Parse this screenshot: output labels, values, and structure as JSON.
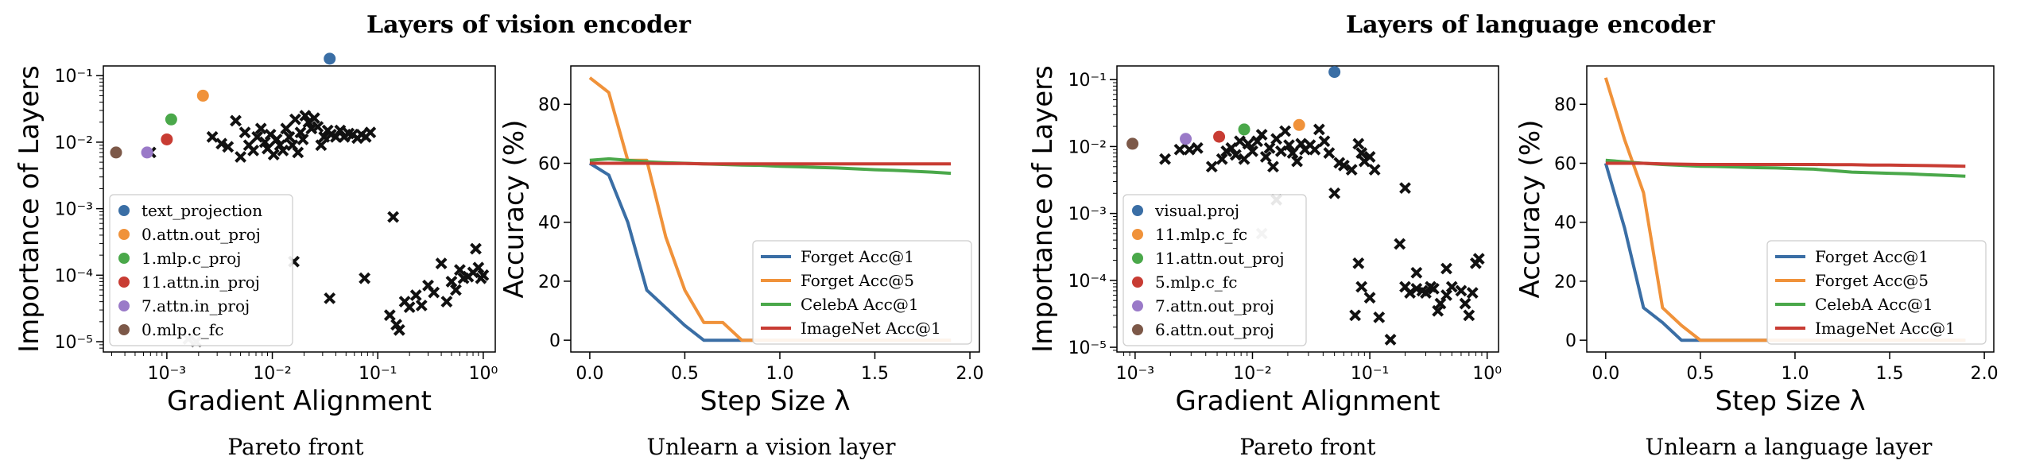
{
  "section_titles": [
    "Layers of vision encoder",
    "Layers of language encoder"
  ],
  "chart_data": [
    {
      "type": "scatter",
      "id": "p0",
      "caption": "Pareto front",
      "xlabel": "Gradient Alignment",
      "ylabel": "Importance of Layers",
      "xscale": "log",
      "yscale": "log",
      "xlim": [
        0.00025,
        1.3
      ],
      "ylim": [
        7e-06,
        0.14
      ],
      "xticks": [
        0.001,
        0.01,
        0.1,
        1
      ],
      "xtick_labels": [
        "10⁻³",
        "10⁻²",
        "10⁻¹",
        "10⁰"
      ],
      "yticks": [
        1e-05,
        0.0001,
        0.001,
        0.01,
        0.1
      ],
      "ytick_labels": [
        "10⁻⁵",
        "10⁻⁴",
        "10⁻³",
        "10⁻²",
        "10⁻¹"
      ],
      "legend_position": "lower-left",
      "highlighted": [
        {
          "label": "text_projection",
          "x": 0.035,
          "y": 0.18,
          "color": "#3a6ea5"
        },
        {
          "label": "0.attn.out_proj",
          "x": 0.0022,
          "y": 0.05,
          "color": "#f0923a"
        },
        {
          "label": "1.mlp.c_proj",
          "x": 0.0011,
          "y": 0.022,
          "color": "#4aa84a"
        },
        {
          "label": "11.attn.in_proj",
          "x": 0.001,
          "y": 0.011,
          "color": "#c83c33"
        },
        {
          "label": "7.attn.in_proj",
          "x": 0.00065,
          "y": 0.007,
          "color": "#9a7ac8"
        },
        {
          "label": "0.mlp.c_fc",
          "x": 0.00033,
          "y": 0.007,
          "color": "#7c5848"
        }
      ],
      "others": [
        [
          0.0007,
          0.007
        ],
        [
          0.0027,
          0.012
        ],
        [
          0.0033,
          0.0095
        ],
        [
          0.0038,
          0.0085
        ],
        [
          0.0045,
          0.021
        ],
        [
          0.005,
          0.006
        ],
        [
          0.0055,
          0.014
        ],
        [
          0.006,
          0.009
        ],
        [
          0.0066,
          0.0075
        ],
        [
          0.0072,
          0.012
        ],
        [
          0.0078,
          0.016
        ],
        [
          0.0085,
          0.01
        ],
        [
          0.009,
          0.008
        ],
        [
          0.0096,
          0.013
        ],
        [
          0.0103,
          0.0065
        ],
        [
          0.011,
          0.011
        ],
        [
          0.0118,
          0.009
        ],
        [
          0.0126,
          0.0075
        ],
        [
          0.0135,
          0.016
        ],
        [
          0.0145,
          0.012
        ],
        [
          0.0155,
          0.009
        ],
        [
          0.0165,
          0.022
        ],
        [
          0.0175,
          0.007
        ],
        [
          0.0185,
          0.014
        ],
        [
          0.0195,
          0.011
        ],
        [
          0.0205,
          0.025
        ],
        [
          0.022,
          0.02
        ],
        [
          0.0235,
          0.016
        ],
        [
          0.025,
          0.023
        ],
        [
          0.027,
          0.017
        ],
        [
          0.029,
          0.009
        ],
        [
          0.031,
          0.012
        ],
        [
          0.0335,
          0.015
        ],
        [
          0.036,
          0.013
        ],
        [
          0.04,
          0.012
        ],
        [
          0.044,
          0.015
        ],
        [
          0.048,
          0.012
        ],
        [
          0.053,
          0.0135
        ],
        [
          0.058,
          0.013
        ],
        [
          0.064,
          0.0115
        ],
        [
          0.07,
          0.013
        ],
        [
          0.077,
          0.012
        ],
        [
          0.085,
          0.014
        ],
        [
          0.035,
          4.5e-05
        ],
        [
          0.016,
          0.00016
        ],
        [
          0.075,
          9e-05
        ],
        [
          0.14,
          0.00075
        ],
        [
          0.13,
          2.5e-05
        ],
        [
          0.15,
          1.8e-05
        ],
        [
          0.16,
          1.5e-05
        ],
        [
          0.18,
          4e-05
        ],
        [
          0.2,
          3.3e-05
        ],
        [
          0.23,
          5e-05
        ],
        [
          0.26,
          3.5e-05
        ],
        [
          0.3,
          7e-05
        ],
        [
          0.34,
          5.5e-05
        ],
        [
          0.4,
          0.00015
        ],
        [
          0.45,
          4e-05
        ],
        [
          0.5,
          8e-05
        ],
        [
          0.55,
          6e-05
        ],
        [
          0.6,
          0.00012
        ],
        [
          0.65,
          9e-05
        ],
        [
          0.72,
          9.5e-05
        ],
        [
          0.8,
          0.00011
        ],
        [
          0.85,
          0.00025
        ],
        [
          0.9,
          0.00013
        ],
        [
          0.95,
          9e-05
        ],
        [
          1.0,
          0.0001
        ]
      ],
      "faded": [
        [
          0.0016,
          1.1e-05
        ],
        [
          0.0019,
          1e-05
        ]
      ]
    },
    {
      "type": "line",
      "id": "p1",
      "caption": "Unlearn a vision layer",
      "xlabel": "Step Size λ",
      "ylabel": "Accuracy (%)",
      "xlim": [
        -0.1,
        2.05
      ],
      "ylim": [
        -4,
        93
      ],
      "xticks": [
        0,
        0.5,
        1,
        1.5,
        2
      ],
      "xtick_labels": [
        "0.0",
        "0.5",
        "1.0",
        "1.5",
        "2.0"
      ],
      "yticks": [
        0,
        20,
        40,
        60,
        80
      ],
      "ytick_labels": [
        "0",
        "20",
        "40",
        "60",
        "80"
      ],
      "legend_position": "lower-right",
      "series": [
        {
          "name": "Forget Acc@1",
          "color": "#3a6ea5",
          "x": [
            0,
            0.1,
            0.2,
            0.3,
            0.4,
            0.5,
            0.6,
            0.7,
            0.8,
            0.9,
            1.0,
            1.1,
            1.2,
            1.3,
            1.4,
            1.5,
            1.6,
            1.7,
            1.8,
            1.9
          ],
          "y": [
            60,
            56,
            40,
            17,
            11,
            5,
            0,
            0,
            0,
            0,
            0,
            0,
            0,
            0,
            0,
            0,
            0,
            0,
            0,
            0
          ]
        },
        {
          "name": "Forget Acc@5",
          "color": "#f0923a",
          "x": [
            0,
            0.1,
            0.2,
            0.3,
            0.4,
            0.5,
            0.6,
            0.7,
            0.8,
            0.9,
            1.0,
            1.1,
            1.2,
            1.3,
            1.4,
            1.5,
            1.6,
            1.7,
            1.8,
            1.9
          ],
          "y": [
            89,
            84,
            61,
            61,
            35,
            17,
            6,
            6,
            0,
            0,
            0,
            0,
            0,
            0,
            0,
            0,
            0,
            0,
            0,
            0
          ]
        },
        {
          "name": "CelebA Acc@1",
          "color": "#4aa84a",
          "x": [
            0,
            0.1,
            0.2,
            0.3,
            0.4,
            0.5,
            0.6,
            0.7,
            0.8,
            0.9,
            1.0,
            1.1,
            1.2,
            1.3,
            1.4,
            1.5,
            1.6,
            1.7,
            1.8,
            1.9
          ],
          "y": [
            61,
            61.5,
            61,
            60.5,
            60.2,
            60,
            59.8,
            59.6,
            59.4,
            59.3,
            59,
            58.8,
            58.6,
            58.4,
            58.1,
            57.8,
            57.6,
            57.3,
            57,
            56.6
          ]
        },
        {
          "name": "ImageNet Acc@1",
          "color": "#c83c33",
          "x": [
            0,
            0.1,
            0.2,
            0.3,
            0.4,
            0.5,
            0.6,
            0.7,
            0.8,
            0.9,
            1.0,
            1.1,
            1.2,
            1.3,
            1.4,
            1.5,
            1.6,
            1.7,
            1.8,
            1.9
          ],
          "y": [
            60,
            60,
            60,
            60,
            59.9,
            59.9,
            59.8,
            59.8,
            59.8,
            59.8,
            59.8,
            59.8,
            59.8,
            59.8,
            59.8,
            59.8,
            59.8,
            59.8,
            59.8,
            59.8
          ]
        }
      ]
    },
    {
      "type": "scatter",
      "id": "p2",
      "caption": "Pareto front",
      "xlabel": "Gradient Alignment",
      "ylabel": "Importance of Layers",
      "xscale": "log",
      "yscale": "log",
      "xlim": [
        0.0007,
        1.25
      ],
      "ylim": [
        8.5e-06,
        0.16
      ],
      "xticks": [
        0.001,
        0.01,
        0.1,
        1
      ],
      "xtick_labels": [
        "10⁻³",
        "10⁻²",
        "10⁻¹",
        "10⁰"
      ],
      "yticks": [
        1e-05,
        0.0001,
        0.001,
        0.01,
        0.1
      ],
      "ytick_labels": [
        "10⁻⁵",
        "10⁻⁴",
        "10⁻³",
        "10⁻²",
        "10⁻¹"
      ],
      "legend_position": "lower-left",
      "highlighted": [
        {
          "label": "visual.proj",
          "x": 0.05,
          "y": 0.13,
          "color": "#3a6ea5"
        },
        {
          "label": "11.mlp.c_fc",
          "x": 0.025,
          "y": 0.021,
          "color": "#f0923a"
        },
        {
          "label": "11.attn.out_proj",
          "x": 0.0085,
          "y": 0.018,
          "color": "#4aa84a"
        },
        {
          "label": "5.mlp.c_fc",
          "x": 0.0052,
          "y": 0.014,
          "color": "#c83c33"
        },
        {
          "label": "7.attn.out_proj",
          "x": 0.0027,
          "y": 0.013,
          "color": "#9a7ac8"
        },
        {
          "label": "6.attn.out_proj",
          "x": 0.00095,
          "y": 0.011,
          "color": "#7c5848"
        }
      ],
      "others": [
        [
          0.0018,
          0.0065
        ],
        [
          0.0024,
          0.009
        ],
        [
          0.0029,
          0.009
        ],
        [
          0.0034,
          0.0095
        ],
        [
          0.0045,
          0.005
        ],
        [
          0.0055,
          0.0065
        ],
        [
          0.006,
          0.0085
        ],
        [
          0.0066,
          0.0095
        ],
        [
          0.0072,
          0.0075
        ],
        [
          0.0078,
          0.012
        ],
        [
          0.0085,
          0.0065
        ],
        [
          0.0092,
          0.011
        ],
        [
          0.01,
          0.0085
        ],
        [
          0.011,
          0.012
        ],
        [
          0.012,
          0.015
        ],
        [
          0.013,
          0.007
        ],
        [
          0.014,
          0.0095
        ],
        [
          0.015,
          0.005
        ],
        [
          0.016,
          0.013
        ],
        [
          0.0175,
          0.0085
        ],
        [
          0.019,
          0.017
        ],
        [
          0.0205,
          0.0105
        ],
        [
          0.022,
          0.008
        ],
        [
          0.024,
          0.006
        ],
        [
          0.026,
          0.011
        ],
        [
          0.028,
          0.009
        ],
        [
          0.031,
          0.0105
        ],
        [
          0.034,
          0.009
        ],
        [
          0.037,
          0.018
        ],
        [
          0.041,
          0.012
        ],
        [
          0.045,
          0.008
        ],
        [
          0.055,
          0.0057
        ],
        [
          0.06,
          0.0052
        ],
        [
          0.07,
          0.0045
        ],
        [
          0.08,
          0.011
        ],
        [
          0.085,
          0.008
        ],
        [
          0.09,
          0.006
        ],
        [
          0.1,
          0.007
        ],
        [
          0.11,
          0.0045
        ],
        [
          0.05,
          0.002
        ],
        [
          0.016,
          0.0016
        ],
        [
          0.075,
          3e-05
        ],
        [
          0.08,
          0.00018
        ],
        [
          0.085,
          8e-05
        ],
        [
          0.1,
          5.5e-05
        ],
        [
          0.12,
          2.8e-05
        ],
        [
          0.15,
          1.3e-05
        ],
        [
          0.18,
          0.00035
        ],
        [
          0.2,
          0.0024
        ],
        [
          0.2,
          8e-05
        ],
        [
          0.22,
          6.5e-05
        ],
        [
          0.25,
          0.00013
        ],
        [
          0.25,
          7.5e-05
        ],
        [
          0.28,
          7e-05
        ],
        [
          0.3,
          6.5e-05
        ],
        [
          0.33,
          8e-05
        ],
        [
          0.35,
          7.5e-05
        ],
        [
          0.38,
          3.5e-05
        ],
        [
          0.45,
          0.00015
        ],
        [
          0.5,
          8e-05
        ],
        [
          0.6,
          7e-05
        ],
        [
          0.65,
          4.5e-05
        ],
        [
          0.7,
          3e-05
        ],
        [
          0.75,
          6.5e-05
        ],
        [
          0.8,
          0.00018
        ],
        [
          0.85,
          0.00021
        ],
        [
          0.4,
          4.5e-05
        ],
        [
          0.45,
          6e-05
        ]
      ],
      "faded": [
        [
          0.012,
          0.0005
        ]
      ]
    },
    {
      "type": "line",
      "id": "p3",
      "caption": "Unlearn a language layer",
      "xlabel": "Step Size λ",
      "ylabel": "Accuracy (%)",
      "xlim": [
        -0.1,
        2.05
      ],
      "ylim": [
        -4,
        93
      ],
      "xticks": [
        0,
        0.5,
        1,
        1.5,
        2
      ],
      "xtick_labels": [
        "0.0",
        "0.5",
        "1.0",
        "1.5",
        "2.0"
      ],
      "yticks": [
        0,
        20,
        40,
        60,
        80
      ],
      "ytick_labels": [
        "0",
        "20",
        "40",
        "60",
        "80"
      ],
      "legend_position": "lower-right",
      "series": [
        {
          "name": "Forget Acc@1",
          "color": "#3a6ea5",
          "x": [
            0,
            0.1,
            0.2,
            0.3,
            0.4,
            0.5,
            0.6,
            0.7,
            0.8,
            0.9,
            1.0,
            1.1,
            1.2,
            1.3,
            1.4,
            1.5,
            1.6,
            1.7,
            1.8,
            1.9
          ],
          "y": [
            60,
            38,
            11,
            6,
            0,
            0,
            0,
            0,
            0,
            0,
            0,
            0,
            0,
            0,
            0,
            0,
            0,
            0,
            0,
            0
          ]
        },
        {
          "name": "Forget Acc@5",
          "color": "#f0923a",
          "x": [
            0,
            0.1,
            0.2,
            0.3,
            0.4,
            0.5,
            0.6,
            0.7,
            0.8,
            0.9,
            1.0,
            1.1,
            1.2,
            1.3,
            1.4,
            1.5,
            1.6,
            1.7,
            1.8,
            1.9
          ],
          "y": [
            89,
            68,
            50,
            11,
            5,
            0,
            0,
            0,
            0,
            0,
            0,
            0,
            0,
            0,
            0,
            0,
            0,
            0,
            0,
            0
          ]
        },
        {
          "name": "CelebA Acc@1",
          "color": "#4aa84a",
          "x": [
            0,
            0.1,
            0.2,
            0.3,
            0.4,
            0.5,
            0.6,
            0.7,
            0.8,
            0.9,
            1.0,
            1.1,
            1.2,
            1.3,
            1.4,
            1.5,
            1.6,
            1.7,
            1.8,
            1.9
          ],
          "y": [
            61,
            60.5,
            60,
            59.6,
            59.3,
            59,
            58.9,
            58.7,
            58.5,
            58.4,
            58.2,
            58,
            57.5,
            57,
            56.8,
            56.6,
            56.4,
            56.1,
            55.9,
            55.6
          ]
        },
        {
          "name": "ImageNet Acc@1",
          "color": "#c83c33",
          "x": [
            0,
            0.1,
            0.2,
            0.3,
            0.4,
            0.5,
            0.6,
            0.7,
            0.8,
            0.9,
            1.0,
            1.1,
            1.2,
            1.3,
            1.4,
            1.5,
            1.6,
            1.7,
            1.8,
            1.9
          ],
          "y": [
            60,
            60,
            60,
            59.8,
            59.7,
            59.6,
            59.6,
            59.6,
            59.6,
            59.6,
            59.6,
            59.6,
            59.5,
            59.5,
            59.4,
            59.4,
            59.3,
            59.2,
            59.1,
            59
          ]
        }
      ]
    }
  ]
}
